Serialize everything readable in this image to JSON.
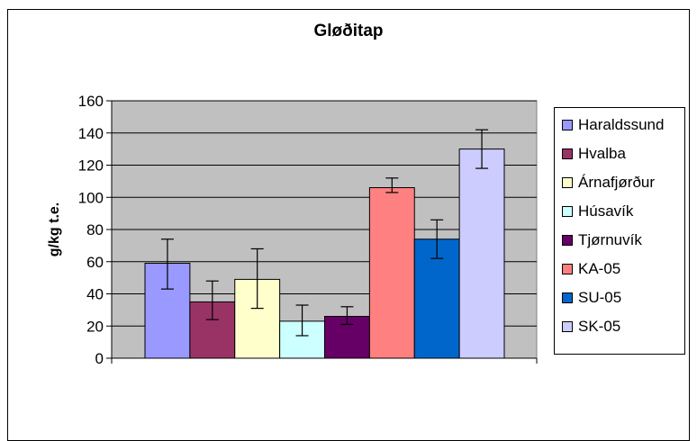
{
  "chart_data": {
    "type": "bar",
    "title": "Gløðitap",
    "xlabel": "",
    "ylabel": "g/kg t.e.",
    "ylim": [
      0,
      160
    ],
    "yticks": [
      0,
      20,
      40,
      60,
      80,
      100,
      120,
      140,
      160
    ],
    "grid": true,
    "legend_position": "right",
    "plot_background": "#c0c0c0",
    "series": [
      {
        "name": "Haraldssund",
        "value": 59,
        "err_low": 43,
        "err_high": 74,
        "color": "#9999ff"
      },
      {
        "name": "Hvalba",
        "value": 35,
        "err_low": 24,
        "err_high": 48,
        "color": "#993366"
      },
      {
        "name": "Árnafjørður",
        "value": 49,
        "err_low": 31,
        "err_high": 68,
        "color": "#ffffcc"
      },
      {
        "name": "Húsavík",
        "value": 23,
        "err_low": 14,
        "err_high": 33,
        "color": "#ccffff"
      },
      {
        "name": "Tjørnuvík",
        "value": 26,
        "err_low": 21,
        "err_high": 32,
        "color": "#660066"
      },
      {
        "name": "KA-05",
        "value": 106,
        "err_low": 103,
        "err_high": 112,
        "color": "#ff8080"
      },
      {
        "name": "SU-05",
        "value": 74,
        "err_low": 62,
        "err_high": 86,
        "color": "#0066cc"
      },
      {
        "name": "SK-05",
        "value": 130,
        "err_low": 118,
        "err_high": 142,
        "color": "#ccccff"
      }
    ]
  }
}
